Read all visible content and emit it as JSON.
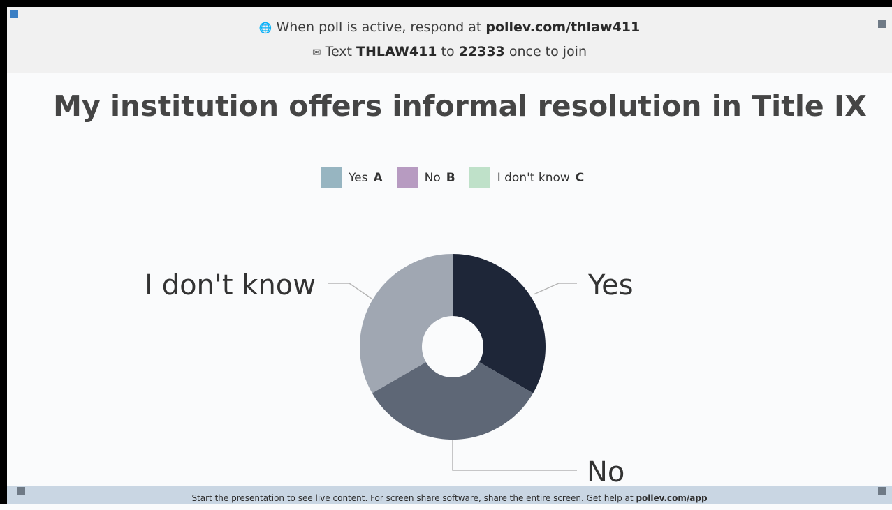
{
  "header": {
    "line1_prefix": "When poll is active, respond at",
    "line1_url": "pollev.com/thlaw411",
    "line2_text": "Text",
    "line2_code": "THLAW411",
    "line2_to": "to",
    "line2_number": "22333",
    "line2_suffix": "once to join"
  },
  "title": "My institution offers informal resolution in Title IX",
  "legend": [
    {
      "label": "Yes",
      "key": "A",
      "color": "#97b5c1"
    },
    {
      "label": "No",
      "key": "B",
      "color": "#b79bc1"
    },
    {
      "label": "I don't know",
      "key": "C",
      "color": "#bfe1c9"
    }
  ],
  "chart_data": {
    "type": "pie",
    "categories": [
      "Yes",
      "No",
      "I don't know"
    ],
    "values": [
      33.3,
      33.3,
      33.3
    ],
    "colors": [
      "#1e2638",
      "#5e6776",
      "#a0a7b2"
    ],
    "donut": true
  },
  "footer": {
    "text": "Start the presentation to see live content. For screen share software, share the entire screen. Get help at",
    "link": "pollev.com/app"
  }
}
